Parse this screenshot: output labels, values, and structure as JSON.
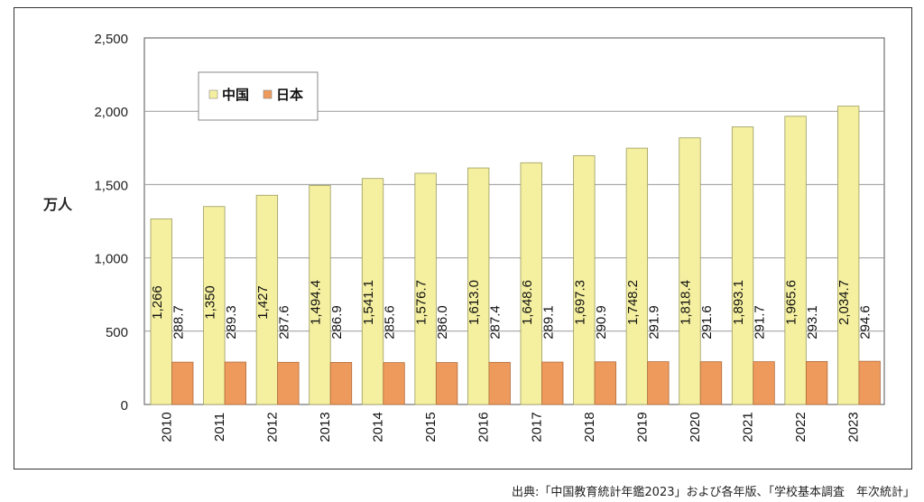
{
  "chart_data": {
    "type": "bar",
    "title": "",
    "xlabel": "",
    "ylabel": "万人",
    "ylim": [
      0,
      2500
    ],
    "yticks": [
      "0",
      "500",
      "1,000",
      "1,500",
      "2,000",
      "2,500"
    ],
    "yticks_values": [
      0,
      500,
      1000,
      1500,
      2000,
      2500
    ],
    "grid": true,
    "legend_position": "top-left",
    "categories": [
      "2010",
      "2011",
      "2012",
      "2013",
      "2014",
      "2015",
      "2016",
      "2017",
      "2018",
      "2019",
      "2020",
      "2021",
      "2022",
      "2023"
    ],
    "series": [
      {
        "name": "中国",
        "color": "#f5f0a0",
        "values": [
          1266,
          1350,
          1427,
          1494.4,
          1541.1,
          1576.7,
          1613.0,
          1648.6,
          1697.3,
          1748.2,
          1818.4,
          1893.1,
          1965.6,
          2034.7
        ],
        "labels": [
          "1,266",
          "1,350",
          "1,427",
          "1,494.4",
          "1,541.1",
          "1,576.7",
          "1,613.0",
          "1,648.6",
          "1,697.3",
          "1,748.2",
          "1,818.4",
          "1,893.1",
          "1,965.6",
          "2,034.7"
        ]
      },
      {
        "name": "日本",
        "color": "#ee9a5c",
        "values": [
          288.7,
          289.3,
          287.6,
          286.9,
          285.6,
          286.0,
          287.4,
          289.1,
          290.9,
          291.9,
          291.6,
          291.7,
          293.1,
          294.6
        ],
        "labels": [
          "288.7",
          "289.3",
          "287.6",
          "286.9",
          "285.6",
          "286.0",
          "287.4",
          "289.1",
          "290.9",
          "291.9",
          "291.6",
          "291.7",
          "293.1",
          "294.6"
        ]
      }
    ]
  },
  "source": "出典:「中国教育統計年鑑2023」および各年版、「学校基本調査　年次統計」"
}
